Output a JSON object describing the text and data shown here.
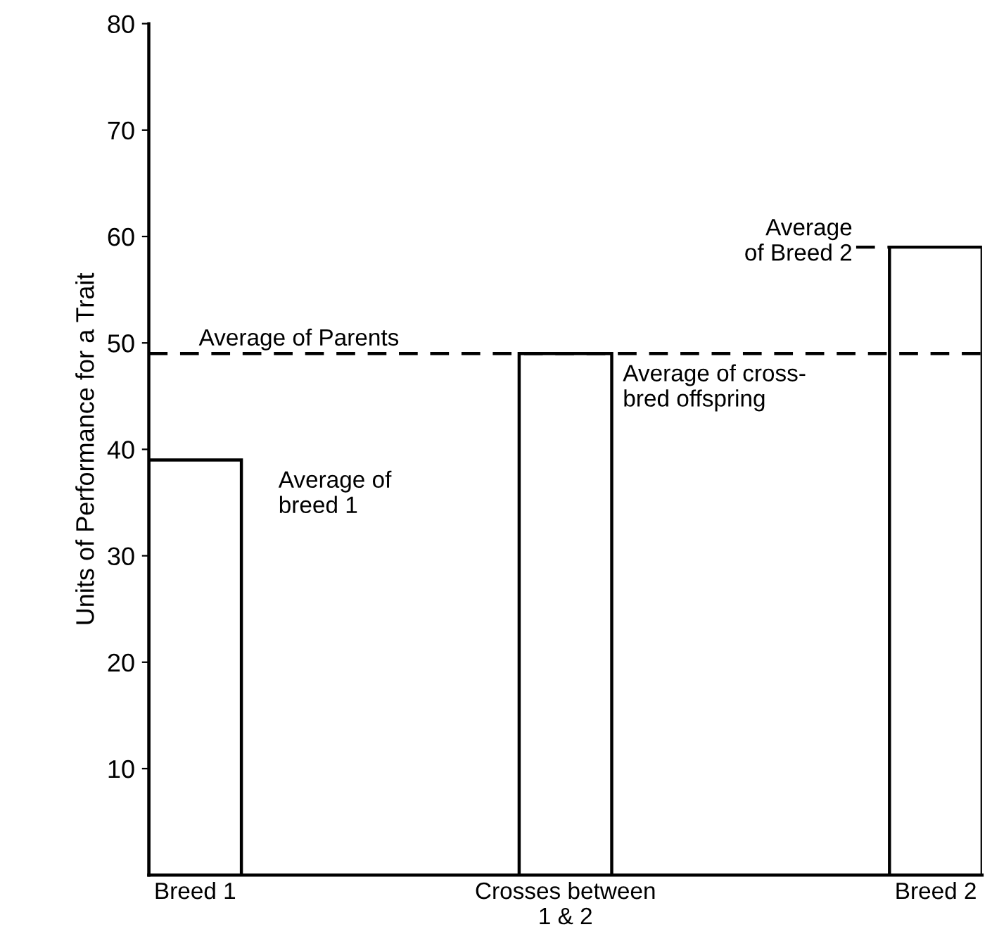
{
  "chart_data": {
    "type": "bar",
    "ylabel": "Units of Performance for a Trait",
    "categories": [
      "Breed 1",
      "Crosses between\n1 & 2",
      "Breed 2"
    ],
    "values": [
      39,
      49,
      59
    ],
    "color": "#ffffff",
    "ylim": [
      0,
      80
    ],
    "yticks": [
      10,
      20,
      30,
      40,
      50,
      60,
      70,
      80
    ],
    "grid": false,
    "ref_lines": [
      {
        "axis": "y",
        "value": 49,
        "label": "Average of Parents",
        "line_style": "dashed",
        "color": "#000000"
      }
    ],
    "annotations": [
      "Average of\nbreed 1",
      "Average of cross-\nbred offspring",
      "Average\nof Breed 2"
    ]
  }
}
